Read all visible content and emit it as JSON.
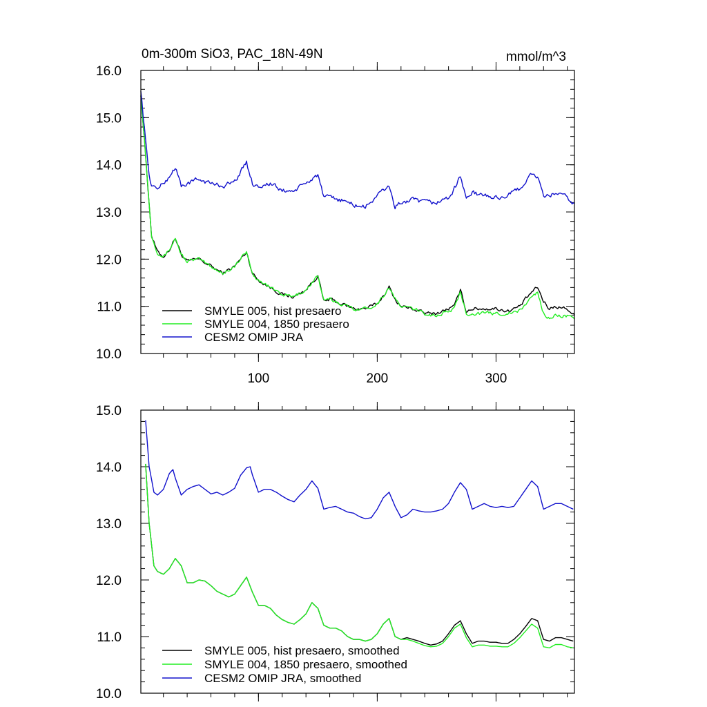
{
  "colors": {
    "hist": "#000000",
    "p1850": "#22ee22",
    "omip": "#1010cc"
  },
  "chart_data": [
    {
      "type": "line",
      "title": "0m-300m SiO3, PAC_18N-49N",
      "units": "mmol/m^3",
      "xlim": [
        1,
        366
      ],
      "ylim": [
        10.0,
        16.0
      ],
      "xticks": [
        100,
        200,
        300
      ],
      "xtick_labels": [
        "100",
        "200",
        "300"
      ],
      "yticks": [
        10.0,
        11.0,
        12.0,
        13.0,
        14.0,
        15.0,
        16.0
      ],
      "ytick_labels": [
        "10.0",
        "11.0",
        "12.0",
        "13.0",
        "14.0",
        "15.0",
        "16.0"
      ],
      "legend": "bottom-left",
      "series": [
        {
          "name": "SMYLE 005, hist presaero",
          "color_key": "hist",
          "noise": 0.06,
          "x": [
            1,
            5,
            10,
            15,
            20,
            25,
            30,
            35,
            40,
            50,
            60,
            70,
            80,
            90,
            95,
            100,
            110,
            120,
            130,
            140,
            150,
            155,
            160,
            170,
            180,
            190,
            200,
            210,
            215,
            220,
            230,
            240,
            250,
            260,
            265,
            270,
            275,
            280,
            290,
            300,
            310,
            320,
            330,
            335,
            340,
            345,
            350,
            360,
            366
          ],
          "y": [
            15.5,
            14.2,
            12.5,
            12.15,
            12.05,
            12.2,
            12.45,
            12.1,
            11.95,
            12.0,
            11.85,
            11.7,
            11.85,
            12.15,
            11.7,
            11.55,
            11.4,
            11.25,
            11.2,
            11.35,
            11.65,
            11.1,
            11.15,
            11.05,
            10.95,
            10.95,
            11.05,
            11.4,
            11.15,
            11.0,
            10.95,
            10.85,
            10.85,
            10.95,
            11.0,
            11.35,
            10.9,
            10.95,
            10.95,
            10.95,
            10.9,
            11.0,
            11.3,
            11.4,
            11.1,
            10.95,
            11.0,
            10.95,
            10.8
          ]
        },
        {
          "name": "SMYLE 004, 1850 presaero",
          "color_key": "p1850",
          "noise": 0.06,
          "x": [
            1,
            5,
            10,
            15,
            20,
            25,
            30,
            35,
            40,
            50,
            60,
            70,
            80,
            90,
            95,
            100,
            110,
            120,
            130,
            140,
            150,
            155,
            160,
            170,
            180,
            190,
            200,
            210,
            215,
            220,
            230,
            240,
            250,
            260,
            265,
            270,
            275,
            280,
            290,
            300,
            310,
            320,
            330,
            335,
            340,
            345,
            350,
            360,
            366
          ],
          "y": [
            15.5,
            14.2,
            12.5,
            12.15,
            12.05,
            12.2,
            12.45,
            12.1,
            11.95,
            12.0,
            11.85,
            11.7,
            11.85,
            12.15,
            11.7,
            11.55,
            11.4,
            11.25,
            11.2,
            11.35,
            11.65,
            11.1,
            11.15,
            11.05,
            10.95,
            10.95,
            11.05,
            11.4,
            11.15,
            11.0,
            10.95,
            10.85,
            10.8,
            10.9,
            10.95,
            11.3,
            10.85,
            10.85,
            10.85,
            10.85,
            10.85,
            10.9,
            11.2,
            11.3,
            10.85,
            10.75,
            10.8,
            10.8,
            10.7
          ]
        },
        {
          "name": "CESM2 OMIP JRA",
          "color_key": "omip",
          "noise": 0.08,
          "x": [
            1,
            5,
            8,
            10,
            15,
            20,
            25,
            30,
            35,
            40,
            50,
            60,
            70,
            80,
            90,
            95,
            100,
            110,
            120,
            130,
            140,
            150,
            155,
            160,
            170,
            180,
            190,
            200,
            210,
            215,
            220,
            230,
            240,
            250,
            260,
            265,
            270,
            275,
            280,
            290,
            300,
            310,
            320,
            330,
            335,
            340,
            345,
            350,
            360,
            366
          ],
          "y": [
            15.6,
            14.5,
            13.8,
            13.55,
            13.5,
            13.6,
            13.75,
            13.95,
            13.55,
            13.6,
            13.7,
            13.6,
            13.55,
            13.65,
            14.05,
            13.6,
            13.55,
            13.6,
            13.45,
            13.45,
            13.6,
            13.8,
            13.3,
            13.3,
            13.25,
            13.15,
            13.1,
            13.35,
            13.55,
            13.1,
            13.2,
            13.25,
            13.2,
            13.2,
            13.3,
            13.5,
            13.75,
            13.3,
            13.4,
            13.35,
            13.3,
            13.35,
            13.5,
            13.8,
            13.75,
            13.3,
            13.35,
            13.4,
            13.3,
            13.15
          ]
        }
      ]
    },
    {
      "type": "line",
      "title": "",
      "xlim": [
        1,
        366
      ],
      "ylim": [
        10.0,
        15.0
      ],
      "xticks": [
        100,
        200,
        300
      ],
      "yticks": [
        10.0,
        11.0,
        12.0,
        13.0,
        14.0,
        15.0
      ],
      "ytick_labels": [
        "10.0",
        "11.0",
        "12.0",
        "13.0",
        "14.0",
        "15.0"
      ],
      "legend": "bottom-left",
      "series": [
        {
          "name": "SMYLE 005, hist presaero, smoothed",
          "color_key": "hist",
          "noise": 0.0,
          "x": [
            5,
            8,
            12,
            15,
            20,
            25,
            30,
            35,
            40,
            45,
            50,
            55,
            60,
            65,
            70,
            75,
            80,
            85,
            90,
            95,
            100,
            105,
            110,
            115,
            120,
            125,
            130,
            135,
            140,
            145,
            150,
            155,
            160,
            165,
            170,
            175,
            180,
            185,
            190,
            195,
            200,
            205,
            210,
            215,
            220,
            225,
            230,
            235,
            240,
            245,
            250,
            255,
            260,
            265,
            270,
            275,
            280,
            285,
            290,
            295,
            300,
            305,
            310,
            315,
            320,
            325,
            330,
            335,
            340,
            345,
            350,
            355,
            360,
            365
          ],
          "y": [
            14.05,
            13.0,
            12.25,
            12.15,
            12.1,
            12.2,
            12.38,
            12.25,
            11.95,
            11.95,
            12.0,
            11.98,
            11.9,
            11.8,
            11.75,
            11.7,
            11.75,
            11.9,
            12.05,
            11.78,
            11.55,
            11.55,
            11.5,
            11.38,
            11.3,
            11.25,
            11.22,
            11.3,
            11.4,
            11.6,
            11.5,
            11.2,
            11.15,
            11.15,
            11.1,
            11.0,
            10.95,
            10.95,
            10.92,
            10.95,
            11.05,
            11.22,
            11.32,
            11.0,
            10.95,
            10.98,
            10.95,
            10.92,
            10.88,
            10.85,
            10.87,
            10.92,
            11.05,
            11.2,
            11.28,
            11.05,
            10.88,
            10.92,
            10.92,
            10.9,
            10.9,
            10.88,
            10.88,
            10.95,
            11.05,
            11.18,
            11.32,
            11.28,
            10.95,
            10.92,
            10.98,
            10.98,
            10.95,
            10.92
          ]
        },
        {
          "name": "SMYLE 004, 1850 presaero, smoothed",
          "color_key": "p1850",
          "noise": 0.0,
          "x": [
            5,
            8,
            12,
            15,
            20,
            25,
            30,
            35,
            40,
            45,
            50,
            55,
            60,
            65,
            70,
            75,
            80,
            85,
            90,
            95,
            100,
            105,
            110,
            115,
            120,
            125,
            130,
            135,
            140,
            145,
            150,
            155,
            160,
            165,
            170,
            175,
            180,
            185,
            190,
            195,
            200,
            205,
            210,
            215,
            220,
            225,
            230,
            235,
            240,
            245,
            250,
            255,
            260,
            265,
            270,
            275,
            280,
            285,
            290,
            295,
            300,
            305,
            310,
            315,
            320,
            325,
            330,
            335,
            340,
            345,
            350,
            355,
            360,
            365
          ],
          "y": [
            14.05,
            13.0,
            12.25,
            12.15,
            12.1,
            12.2,
            12.38,
            12.25,
            11.95,
            11.95,
            12.0,
            11.98,
            11.9,
            11.8,
            11.75,
            11.7,
            11.75,
            11.9,
            12.05,
            11.78,
            11.55,
            11.55,
            11.5,
            11.38,
            11.3,
            11.25,
            11.22,
            11.3,
            11.4,
            11.6,
            11.5,
            11.2,
            11.15,
            11.15,
            11.1,
            11.0,
            10.95,
            10.95,
            10.92,
            10.95,
            11.05,
            11.22,
            11.32,
            11.0,
            10.95,
            10.95,
            10.92,
            10.88,
            10.84,
            10.82,
            10.83,
            10.88,
            11.0,
            11.15,
            11.22,
            10.98,
            10.82,
            10.85,
            10.85,
            10.83,
            10.83,
            10.82,
            10.82,
            10.88,
            10.98,
            11.1,
            11.22,
            11.15,
            10.82,
            10.8,
            10.86,
            10.86,
            10.82,
            10.8
          ]
        },
        {
          "name": "CESM2 OMIP JRA, smoothed",
          "color_key": "omip",
          "noise": 0.0,
          "x": [
            5,
            8,
            12,
            15,
            20,
            25,
            28,
            30,
            35,
            40,
            45,
            50,
            55,
            60,
            65,
            70,
            75,
            80,
            85,
            90,
            93,
            95,
            100,
            105,
            110,
            115,
            120,
            125,
            130,
            135,
            140,
            145,
            150,
            155,
            160,
            165,
            170,
            175,
            180,
            185,
            190,
            195,
            200,
            205,
            210,
            215,
            220,
            225,
            230,
            235,
            240,
            245,
            250,
            255,
            260,
            265,
            270,
            275,
            280,
            285,
            290,
            295,
            300,
            305,
            310,
            315,
            320,
            325,
            330,
            335,
            340,
            345,
            350,
            355,
            360,
            365
          ],
          "y": [
            14.82,
            14.0,
            13.55,
            13.5,
            13.6,
            13.88,
            13.95,
            13.8,
            13.5,
            13.6,
            13.65,
            13.68,
            13.6,
            13.52,
            13.55,
            13.5,
            13.55,
            13.62,
            13.85,
            13.98,
            14.0,
            13.85,
            13.55,
            13.6,
            13.6,
            13.55,
            13.48,
            13.42,
            13.38,
            13.5,
            13.6,
            13.75,
            13.62,
            13.25,
            13.28,
            13.3,
            13.25,
            13.2,
            13.18,
            13.12,
            13.08,
            13.1,
            13.25,
            13.45,
            13.55,
            13.3,
            13.1,
            13.15,
            13.25,
            13.22,
            13.2,
            13.2,
            13.22,
            13.25,
            13.35,
            13.55,
            13.72,
            13.6,
            13.25,
            13.3,
            13.35,
            13.3,
            13.28,
            13.3,
            13.28,
            13.3,
            13.45,
            13.6,
            13.75,
            13.65,
            13.25,
            13.3,
            13.35,
            13.35,
            13.3,
            13.25
          ]
        }
      ]
    }
  ]
}
